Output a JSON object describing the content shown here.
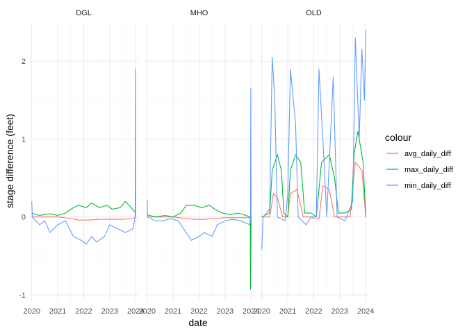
{
  "chart_data": {
    "type": "line",
    "xlabel": "date",
    "ylabel": "stage difference (feet)",
    "x_ticks": [
      "2020",
      "2021",
      "2022",
      "2023",
      "2024"
    ],
    "y_ticks": [
      "-1",
      "0",
      "1",
      "2"
    ],
    "xlim": [
      2019.9,
      2024.1
    ],
    "ylim": [
      -1.08,
      2.5
    ],
    "grid": true,
    "facets": [
      "DGL",
      "MHO",
      "OLD"
    ],
    "legend": {
      "title": "colour",
      "position": "right",
      "entries": [
        "avg_daily_diff",
        "max_daily_diff",
        "min_daily_diff"
      ]
    },
    "series": [
      {
        "name": "avg_daily_diff",
        "color": "#F8766D",
        "facets": {
          "DGL": [
            [
              2020.0,
              0.0
            ],
            [
              2020.5,
              0.0
            ],
            [
              2021.0,
              0.0
            ],
            [
              2021.5,
              -0.02
            ],
            [
              2021.8,
              -0.04
            ],
            [
              2022.2,
              -0.04
            ],
            [
              2022.6,
              -0.03
            ],
            [
              2023.0,
              -0.03
            ],
            [
              2023.5,
              -0.03
            ],
            [
              2023.9,
              -0.02
            ],
            [
              2024.0,
              0.0
            ]
          ],
          "MHO": [
            [
              2020.0,
              0.0
            ],
            [
              2020.5,
              0.0
            ],
            [
              2021.0,
              0.0
            ],
            [
              2021.5,
              -0.02
            ],
            [
              2021.8,
              -0.03
            ],
            [
              2022.2,
              -0.03
            ],
            [
              2022.6,
              -0.02
            ],
            [
              2023.0,
              -0.01
            ],
            [
              2023.5,
              -0.01
            ],
            [
              2023.9,
              -0.01
            ],
            [
              2024.0,
              0.0
            ]
          ],
          "OLD": [
            [
              2020.0,
              0.0
            ],
            [
              2020.3,
              0.0
            ],
            [
              2020.45,
              0.3
            ],
            [
              2020.6,
              0.25
            ],
            [
              2020.8,
              0.0
            ],
            [
              2021.0,
              0.0
            ],
            [
              2021.1,
              0.3
            ],
            [
              2021.35,
              0.35
            ],
            [
              2021.6,
              0.0
            ],
            [
              2021.9,
              0.0
            ],
            [
              2022.0,
              -0.02
            ],
            [
              2022.2,
              -0.02
            ],
            [
              2022.35,
              0.4
            ],
            [
              2022.6,
              0.35
            ],
            [
              2022.8,
              0.0
            ],
            [
              2023.0,
              0.0
            ],
            [
              2023.4,
              0.0
            ],
            [
              2023.6,
              0.7
            ],
            [
              2023.85,
              0.6
            ],
            [
              2024.0,
              0.0
            ]
          ]
        }
      },
      {
        "name": "max_daily_diff",
        "color": "#00BA38",
        "facets": {
          "DGL": [
            [
              2020.0,
              0.05
            ],
            [
              2020.3,
              0.02
            ],
            [
              2020.7,
              0.04
            ],
            [
              2021.0,
              0.02
            ],
            [
              2021.3,
              0.05
            ],
            [
              2021.5,
              0.1
            ],
            [
              2021.8,
              0.15
            ],
            [
              2022.1,
              0.12
            ],
            [
              2022.3,
              0.18
            ],
            [
              2022.6,
              0.12
            ],
            [
              2022.9,
              0.15
            ],
            [
              2023.1,
              0.1
            ],
            [
              2023.4,
              0.12
            ],
            [
              2023.6,
              0.2
            ],
            [
              2023.8,
              0.13
            ],
            [
              2024.0,
              0.05
            ]
          ],
          "MHO": [
            [
              2020.0,
              0.03
            ],
            [
              2020.3,
              0.0
            ],
            [
              2020.7,
              0.02
            ],
            [
              2021.0,
              0.0
            ],
            [
              2021.3,
              0.05
            ],
            [
              2021.5,
              0.15
            ],
            [
              2021.8,
              0.15
            ],
            [
              2022.1,
              0.12
            ],
            [
              2022.4,
              0.15
            ],
            [
              2022.6,
              0.1
            ],
            [
              2022.9,
              0.05
            ],
            [
              2023.2,
              0.03
            ],
            [
              2023.5,
              0.05
            ],
            [
              2023.8,
              0.02
            ],
            [
              2023.97,
              0.0
            ],
            [
              2023.98,
              -0.93
            ],
            [
              2024.0,
              0.0
            ]
          ],
          "OLD": [
            [
              2020.0,
              0.0
            ],
            [
              2020.3,
              0.05
            ],
            [
              2020.4,
              0.6
            ],
            [
              2020.6,
              0.8
            ],
            [
              2020.75,
              0.6
            ],
            [
              2020.85,
              0.05
            ],
            [
              2021.0,
              0.0
            ],
            [
              2021.1,
              0.6
            ],
            [
              2021.3,
              0.8
            ],
            [
              2021.5,
              0.7
            ],
            [
              2021.65,
              0.05
            ],
            [
              2021.9,
              0.05
            ],
            [
              2022.1,
              0.0
            ],
            [
              2022.3,
              0.7
            ],
            [
              2022.6,
              0.8
            ],
            [
              2022.8,
              0.5
            ],
            [
              2022.95,
              0.05
            ],
            [
              2023.2,
              0.05
            ],
            [
              2023.45,
              0.1
            ],
            [
              2023.55,
              0.8
            ],
            [
              2023.7,
              1.1
            ],
            [
              2023.9,
              0.7
            ],
            [
              2024.0,
              0.0
            ]
          ]
        }
      },
      {
        "name": "min_daily_diff",
        "color": "#619CFF",
        "facets": {
          "DGL": [
            [
              2020.0,
              0.2
            ],
            [
              2020.02,
              0.0
            ],
            [
              2020.3,
              -0.1
            ],
            [
              2020.5,
              -0.05
            ],
            [
              2020.7,
              -0.2
            ],
            [
              2021.0,
              -0.1
            ],
            [
              2021.3,
              -0.05
            ],
            [
              2021.6,
              -0.25
            ],
            [
              2021.9,
              -0.3
            ],
            [
              2022.1,
              -0.35
            ],
            [
              2022.3,
              -0.25
            ],
            [
              2022.5,
              -0.32
            ],
            [
              2022.8,
              -0.25
            ],
            [
              2023.0,
              -0.1
            ],
            [
              2023.3,
              -0.15
            ],
            [
              2023.6,
              -0.2
            ],
            [
              2023.9,
              -0.15
            ],
            [
              2023.98,
              0.0
            ],
            [
              2023.99,
              1.9
            ],
            [
              2024.0,
              0.0
            ]
          ],
          "MHO": [
            [
              2020.0,
              0.22
            ],
            [
              2020.02,
              0.0
            ],
            [
              2020.3,
              -0.05
            ],
            [
              2020.6,
              -0.05
            ],
            [
              2020.9,
              -0.02
            ],
            [
              2021.2,
              -0.05
            ],
            [
              2021.5,
              -0.2
            ],
            [
              2021.7,
              -0.3
            ],
            [
              2022.0,
              -0.25
            ],
            [
              2022.2,
              -0.2
            ],
            [
              2022.5,
              -0.25
            ],
            [
              2022.7,
              -0.1
            ],
            [
              2023.0,
              -0.05
            ],
            [
              2023.3,
              -0.03
            ],
            [
              2023.6,
              -0.05
            ],
            [
              2023.95,
              -0.1
            ],
            [
              2023.98,
              0.0
            ],
            [
              2023.99,
              1.65
            ],
            [
              2024.0,
              0.0
            ]
          ],
          "OLD": [
            [
              2020.0,
              -0.42
            ],
            [
              2020.05,
              0.0
            ],
            [
              2020.3,
              0.1
            ],
            [
              2020.4,
              2.05
            ],
            [
              2020.5,
              1.5
            ],
            [
              2020.6,
              0.0
            ],
            [
              2020.9,
              -0.05
            ],
            [
              2021.0,
              0.3
            ],
            [
              2021.1,
              1.9
            ],
            [
              2021.3,
              1.2
            ],
            [
              2021.4,
              0.0
            ],
            [
              2021.7,
              -0.1
            ],
            [
              2021.9,
              0.0
            ],
            [
              2022.1,
              0.0
            ],
            [
              2022.2,
              1.9
            ],
            [
              2022.35,
              1.0
            ],
            [
              2022.5,
              0.0
            ],
            [
              2022.75,
              1.8
            ],
            [
              2022.9,
              0.0
            ],
            [
              2023.2,
              -0.05
            ],
            [
              2023.5,
              0.2
            ],
            [
              2023.6,
              2.3
            ],
            [
              2023.75,
              1.0
            ],
            [
              2023.85,
              2.15
            ],
            [
              2023.95,
              1.5
            ],
            [
              2024.0,
              2.4
            ]
          ]
        }
      }
    ]
  }
}
